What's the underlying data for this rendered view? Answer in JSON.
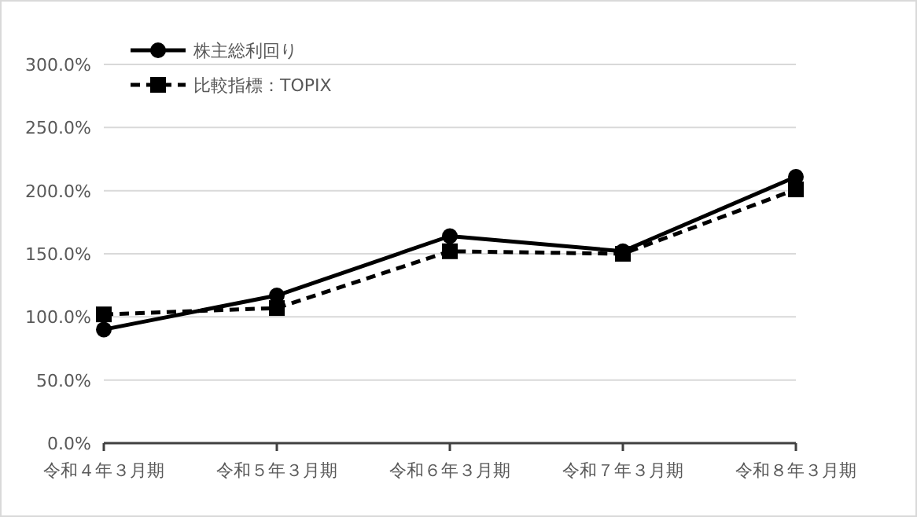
{
  "chart_data": {
    "type": "line",
    "categories": [
      "令和４年３月期",
      "令和５年３月期",
      "令和６年３月期",
      "令和７年３月期",
      "令和８年３月期"
    ],
    "series": [
      {
        "name": "株主総利回り",
        "color": "#000000",
        "values": [
          90,
          117,
          164,
          152,
          211
        ],
        "marker": "circle",
        "line_style": "solid"
      },
      {
        "name": "比較指標：TOPIX",
        "color": "#000000",
        "values": [
          102,
          107,
          152,
          150,
          201
        ],
        "marker": "square",
        "line_style": "dashed"
      }
    ],
    "ylim": [
      0,
      300
    ],
    "yticks": [
      {
        "value": 0,
        "label": "0.0%"
      },
      {
        "value": 50,
        "label": "50.0%"
      },
      {
        "value": 100,
        "label": "100.0%"
      },
      {
        "value": 150,
        "label": "150.0%"
      },
      {
        "value": 200,
        "label": "200.0%"
      },
      {
        "value": 250,
        "label": "250.0%"
      },
      {
        "value": 300,
        "label": "300.0%"
      }
    ],
    "grid": "y",
    "legend": "top left"
  }
}
